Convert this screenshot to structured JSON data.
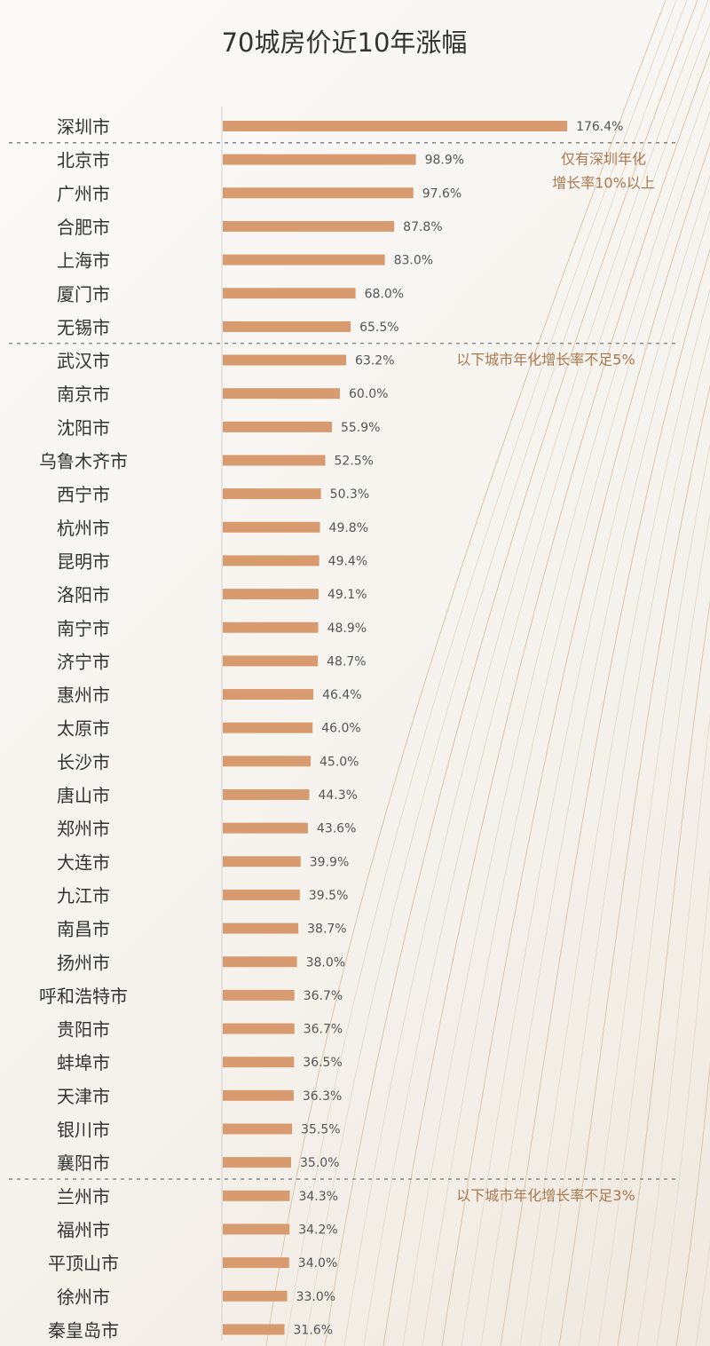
{
  "chart_data": {
    "type": "bar",
    "orientation": "horizontal",
    "title": "70城房价近10年涨幅",
    "value_suffix": "%",
    "bar_color": "#d89b6f",
    "text_color": "#333333",
    "annotation_color": "#a9784f",
    "categories": [
      "深圳市",
      "北京市",
      "广州市",
      "合肥市",
      "上海市",
      "厦门市",
      "无锡市",
      "武汉市",
      "南京市",
      "沈阳市",
      "乌鲁木齐市",
      "西宁市",
      "杭州市",
      "昆明市",
      "洛阳市",
      "南宁市",
      "济宁市",
      "惠州市",
      "太原市",
      "长沙市",
      "唐山市",
      "郑州市",
      "大连市",
      "九江市",
      "南昌市",
      "扬州市",
      "呼和浩特市",
      "贵阳市",
      "蚌埠市",
      "天津市",
      "银川市",
      "襄阳市",
      "兰州市",
      "福州市",
      "平顶山市",
      "徐州市",
      "秦皇岛市"
    ],
    "values": [
      176.4,
      98.9,
      97.6,
      87.8,
      83.0,
      68.0,
      65.5,
      63.2,
      60.0,
      55.9,
      52.5,
      50.3,
      49.8,
      49.4,
      49.1,
      48.9,
      48.7,
      46.4,
      46.0,
      45.0,
      44.3,
      43.6,
      39.9,
      39.5,
      38.7,
      38.0,
      36.7,
      36.7,
      36.5,
      36.3,
      35.5,
      35.0,
      34.3,
      34.2,
      34.0,
      33.0,
      31.6
    ],
    "group_separators_after_index": [
      0,
      6,
      31
    ],
    "annotations": [
      {
        "text_lines": [
          "仅有深圳年化",
          "增长率10%以上"
        ],
        "row": 1
      },
      {
        "text_lines": [
          "以下城市年化增长率不足5%"
        ],
        "row": 7
      },
      {
        "text_lines": [
          "以下城市年化增长率不足3%"
        ],
        "row": 32
      }
    ]
  }
}
